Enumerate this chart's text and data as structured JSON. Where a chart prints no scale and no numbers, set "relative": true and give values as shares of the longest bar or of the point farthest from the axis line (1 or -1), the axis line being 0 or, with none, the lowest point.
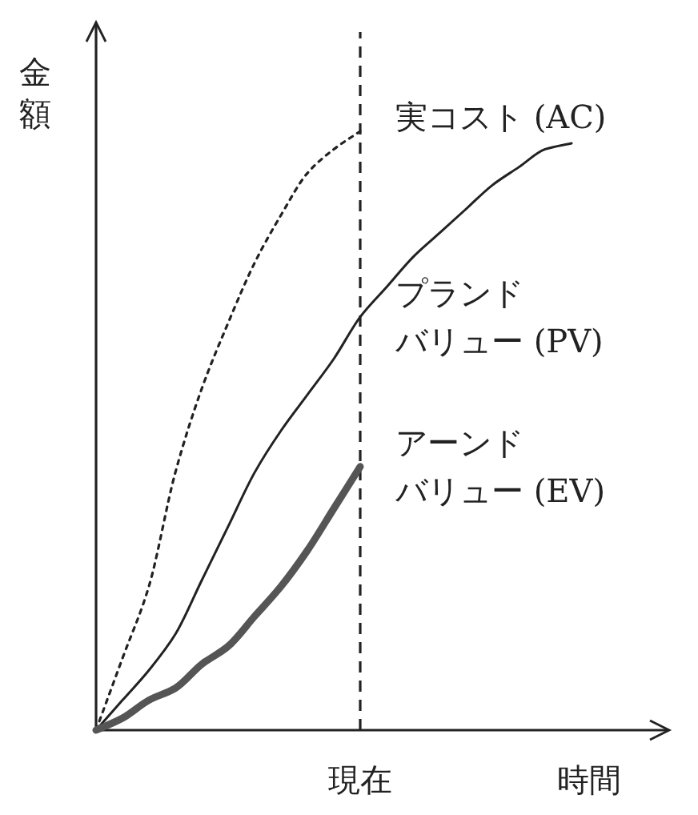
{
  "chart_data": {
    "type": "line",
    "relative": true,
    "xlabel": "時間",
    "ylabel": "金額",
    "categories": [
      null,
      null,
      null,
      null,
      null,
      null,
      null,
      null,
      null,
      null,
      null,
      null,
      null,
      null,
      null,
      null,
      null,
      null,
      null
    ],
    "annotations": [
      "現在"
    ],
    "series": [
      {
        "name": "実コスト (AC)",
        "color": "#222222",
        "line_style": "dotted",
        "values": [
          0,
          0.12,
          0.24,
          0.43,
          0.57,
          0.68,
          0.78,
          0.86,
          0.93,
          0.97,
          1.0,
          null,
          null,
          null,
          null,
          null,
          null,
          null,
          null
        ]
      },
      {
        "name": "プランドバリュー (PV)",
        "color": "#222222",
        "line_style": "solid",
        "values": [
          0,
          0.05,
          0.1,
          0.16,
          0.25,
          0.34,
          0.43,
          0.5,
          0.56,
          0.62,
          0.69,
          0.74,
          0.79,
          0.83,
          0.87,
          0.91,
          0.94,
          0.97,
          0.98
        ]
      },
      {
        "name": "アーンドバリュー (EV)",
        "color": "#555555",
        "line_style": "solid",
        "values": [
          0,
          0.02,
          0.05,
          0.07,
          0.11,
          0.14,
          0.19,
          0.24,
          0.3,
          0.37,
          0.44,
          null,
          null,
          null,
          null,
          null,
          null,
          null,
          null
        ]
      }
    ]
  }
}
